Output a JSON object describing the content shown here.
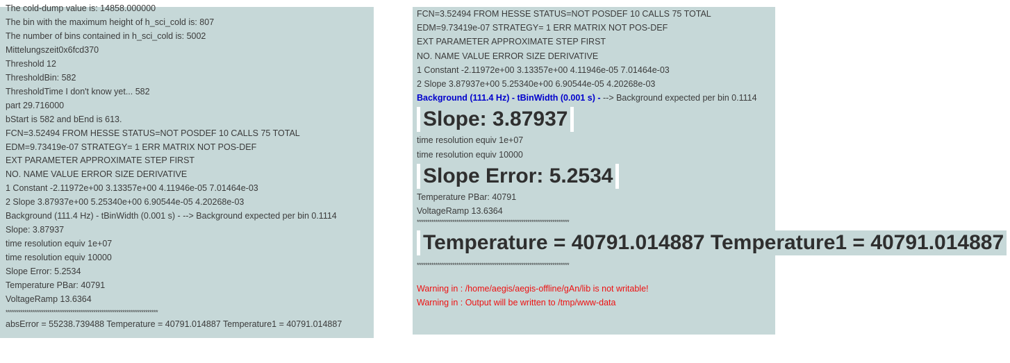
{
  "left_panel": {
    "lines": [
      "The cold-dump value is: 14858.000000",
      "The bin with the maximum height of h_sci_cold is: 807",
      "The number of bins contained in h_sci_cold is: 5002",
      "Mittelungszeit0x6fcd370",
      "Threshold 12",
      "ThresholdBin: 582",
      "ThresholdTime I don't know yet... 582",
      "part 29.716000",
      "bStart is 582 and bEnd is 613.",
      "FCN=3.52494 FROM HESSE STATUS=NOT POSDEF 10 CALLS 75 TOTAL",
      "EDM=9.73419e-07 STRATEGY= 1 ERR MATRIX NOT POS-DEF",
      "EXT PARAMETER APPROXIMATE STEP FIRST",
      "NO. NAME VALUE ERROR SIZE DERIVATIVE",
      "1 Constant -2.11972e+00 3.13357e+00 4.11946e-05 7.01464e-03",
      "2 Slope 3.87937e+00 5.25340e+00 6.90544e-05 4.20268e-03",
      "Background (111.4 Hz) - tBinWidth (0.001 s) - --> Background expected per bin 0.1114",
      "Slope: 3.87937",
      "time resolution equiv 1e+07",
      "time resolution equiv 10000",
      "Slope Error: 5.2534",
      "Temperature PBar: 40791",
      "VoltageRamp 13.6364"
    ],
    "stars": "*************************************************************************",
    "footer": "absError = 55238.739488 Temperature = 40791.014887 Temperature1 = 40791.014887"
  },
  "right_panel": {
    "fit_lines": [
      "FCN=3.52494 FROM HESSE STATUS=NOT POSDEF 10 CALLS 75 TOTAL",
      "EDM=9.73419e-07 STRATEGY= 1 ERR MATRIX NOT POS-DEF",
      "EXT PARAMETER APPROXIMATE STEP FIRST",
      "NO. NAME VALUE ERROR SIZE DERIVATIVE",
      "1 Constant -2.11972e+00 3.13357e+00 4.11946e-05 7.01464e-03",
      "2 Slope 3.87937e+00 5.25340e+00 6.90544e-05 4.20268e-03"
    ],
    "background_label": "Background (111.4 Hz) - tBinWidth (0.001 s) -",
    "background_rest": " --> Background expected per bin 0.1114",
    "slope_heading": "Slope: 3.87937",
    "resolution_lines": [
      "time resolution equiv 1e+07",
      "time resolution equiv 10000"
    ],
    "slope_error_heading": "Slope Error: 5.2534",
    "temp_lines": [
      "Temperature PBar: 40791",
      "VoltageRamp 13.6364"
    ],
    "stars": "*************************************************************************",
    "temperature_heading": "Temperature = 40791.014887 Temperature1 = 40791.014887",
    "warnings": [
      "Warning in : /home/aegis/aegis-offline/gAn/lib is not writable!",
      "Warning in : Output will be written to /tmp/www-data"
    ]
  },
  "colors": {
    "panel_background": "#c6d8d8",
    "text": "#3b3b3b",
    "blue_label": "#0000cc",
    "warning": "#ee1111"
  }
}
